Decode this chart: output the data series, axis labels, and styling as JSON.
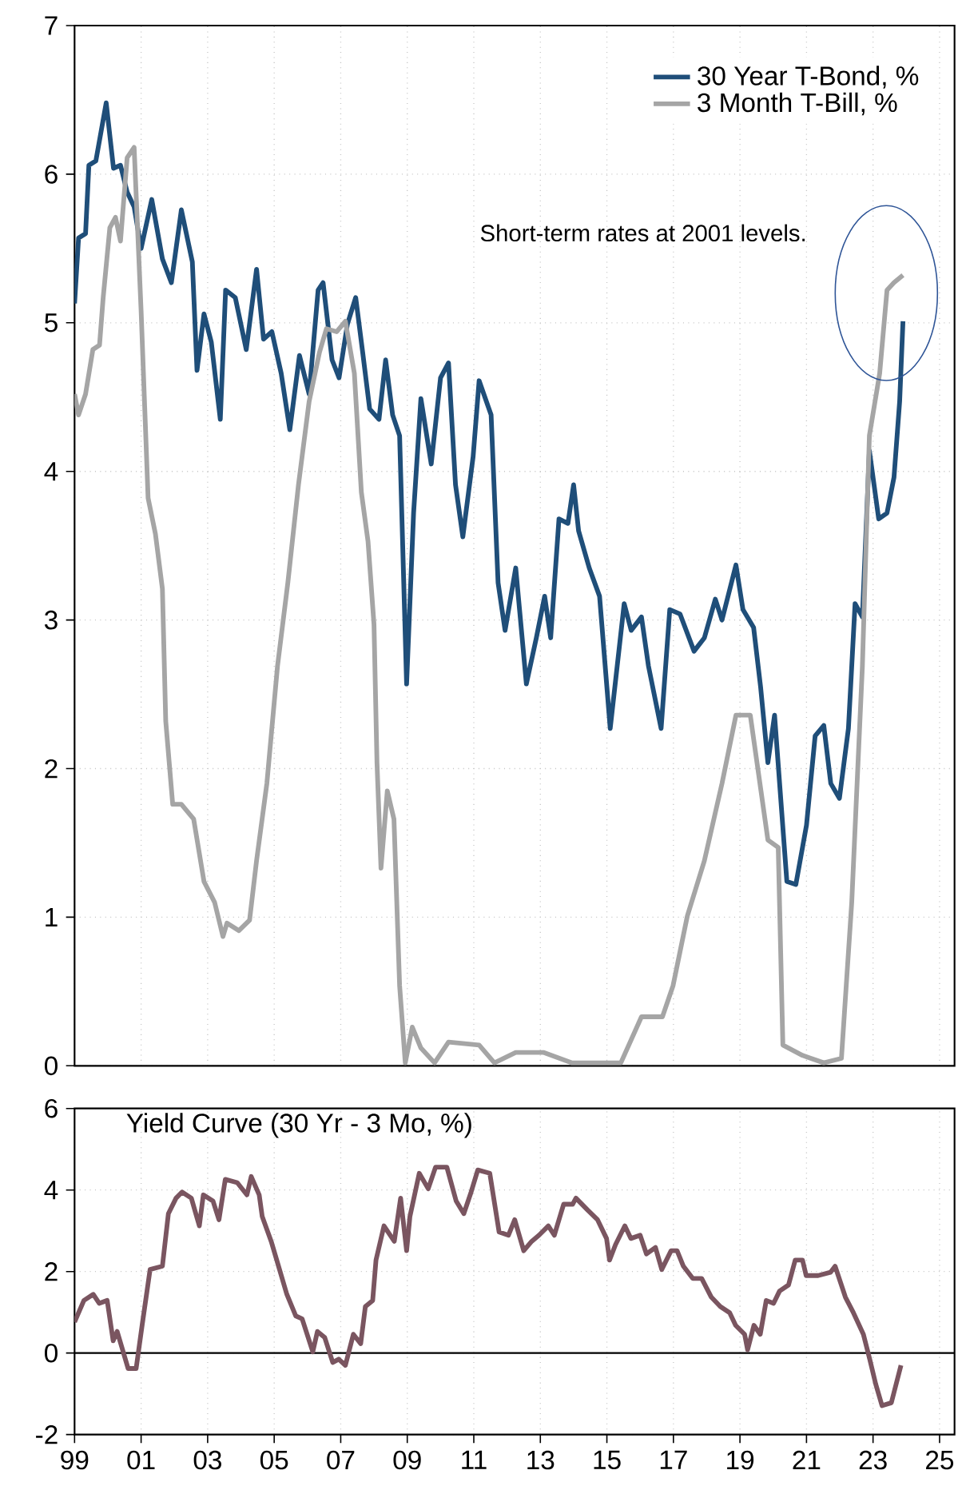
{
  "chart_data": [
    {
      "type": "line",
      "xlim": [
        1999,
        2025.45
      ],
      "ylim": [
        0,
        7
      ],
      "yticks": [
        0,
        1,
        2,
        3,
        4,
        5,
        6,
        7
      ],
      "xticks": [
        {
          "value": 1999,
          "label": null
        },
        {
          "value": 2001,
          "label": null
        },
        {
          "value": 2003,
          "label": null
        },
        {
          "value": 2005,
          "label": null
        },
        {
          "value": 2007,
          "label": null
        },
        {
          "value": 2009,
          "label": null
        },
        {
          "value": 2011,
          "label": null
        },
        {
          "value": 2013,
          "label": null
        },
        {
          "value": 2015,
          "label": null
        },
        {
          "value": 2017,
          "label": null
        },
        {
          "value": 2019,
          "label": null
        },
        {
          "value": 2021,
          "label": null
        },
        {
          "value": 2023,
          "label": null
        },
        {
          "value": 2025,
          "label": null
        }
      ],
      "tick_labels": "y",
      "grid": true,
      "legend": "top right",
      "annotations": [
        "Short-term rates at 2001 levels."
      ],
      "series": [
        {
          "name": "30 Year T-Bond, %",
          "color": "#1f4e79",
          "x": [
            1999.0,
            1999.12,
            1999.33,
            1999.43,
            1999.64,
            1999.95,
            2000.17,
            2000.38,
            2000.58,
            2000.79,
            2001.0,
            2001.32,
            2001.64,
            2001.91,
            2002.21,
            2002.54,
            2002.68,
            2002.89,
            2003.11,
            2003.38,
            2003.54,
            2003.83,
            2004.16,
            2004.47,
            2004.68,
            2004.93,
            2005.21,
            2005.47,
            2005.76,
            2006.05,
            2006.32,
            2006.47,
            2006.74,
            2006.95,
            2007.2,
            2007.45,
            2007.66,
            2007.87,
            2008.15,
            2008.35,
            2008.56,
            2008.77,
            2008.98,
            2009.19,
            2009.41,
            2009.72,
            2010.0,
            2010.24,
            2010.45,
            2010.67,
            2010.98,
            2011.16,
            2011.52,
            2011.73,
            2011.94,
            2012.26,
            2012.58,
            2012.88,
            2013.13,
            2013.31,
            2013.56,
            2013.83,
            2014.0,
            2014.15,
            2014.47,
            2014.78,
            2015.1,
            2015.52,
            2015.73,
            2016.04,
            2016.25,
            2016.63,
            2016.89,
            2017.2,
            2017.62,
            2017.93,
            2018.26,
            2018.46,
            2018.88,
            2019.09,
            2019.41,
            2019.62,
            2019.84,
            2020.04,
            2020.41,
            2020.68,
            2021.0,
            2021.26,
            2021.52,
            2021.73,
            2021.99,
            2022.26,
            2022.46,
            2022.68,
            2022.89,
            2023.17,
            2023.42,
            2023.63,
            2023.8,
            2023.9
          ],
          "values": [
            5.13,
            5.57,
            5.6,
            6.06,
            6.09,
            6.48,
            6.04,
            6.06,
            5.88,
            5.78,
            5.5,
            5.83,
            5.43,
            5.27,
            5.76,
            5.41,
            4.68,
            5.06,
            4.87,
            4.35,
            5.22,
            5.17,
            4.82,
            5.36,
            4.89,
            4.94,
            4.66,
            4.28,
            4.78,
            4.52,
            5.22,
            5.27,
            4.75,
            4.63,
            4.99,
            5.17,
            4.8,
            4.42,
            4.35,
            4.75,
            4.38,
            4.24,
            2.57,
            3.72,
            4.49,
            4.05,
            4.63,
            4.73,
            3.91,
            3.56,
            4.1,
            4.61,
            4.38,
            3.25,
            2.93,
            3.35,
            2.57,
            2.88,
            3.16,
            2.88,
            3.68,
            3.65,
            3.91,
            3.6,
            3.35,
            3.16,
            2.27,
            3.11,
            2.93,
            3.02,
            2.69,
            2.27,
            3.07,
            3.04,
            2.79,
            2.88,
            3.14,
            3.0,
            3.37,
            3.07,
            2.95,
            2.55,
            2.04,
            2.36,
            1.24,
            1.22,
            1.62,
            2.22,
            2.29,
            1.9,
            1.8,
            2.27,
            3.11,
            3.02,
            4.14,
            3.68,
            3.72,
            3.96,
            4.47,
            5.01
          ]
        },
        {
          "name": "3 Month T-Bill, %",
          "color": "#a5a5a5",
          "x": [
            1999.0,
            1999.12,
            1999.33,
            1999.55,
            1999.75,
            1999.86,
            2000.06,
            2000.23,
            2000.38,
            2000.58,
            2000.79,
            2001.0,
            2001.21,
            2001.43,
            2001.64,
            2001.74,
            2001.95,
            2002.21,
            2002.58,
            2002.89,
            2003.21,
            2003.46,
            2003.58,
            2003.94,
            2004.26,
            2004.47,
            2004.78,
            2005.1,
            2005.41,
            2005.73,
            2006.05,
            2006.36,
            2006.57,
            2006.88,
            2007.14,
            2007.41,
            2007.62,
            2007.82,
            2008.0,
            2008.09,
            2008.21,
            2008.4,
            2008.6,
            2008.77,
            2008.94,
            2009.15,
            2009.41,
            2009.82,
            2010.24,
            2011.16,
            2011.62,
            2012.26,
            2013.09,
            2013.94,
            2015.42,
            2016.04,
            2016.67,
            2016.99,
            2017.42,
            2017.93,
            2018.46,
            2018.88,
            2019.31,
            2019.84,
            2020.15,
            2020.29,
            2020.88,
            2021.52,
            2022.05,
            2022.36,
            2022.68,
            2022.89,
            2023.2,
            2023.42,
            2023.63,
            2023.9
          ],
          "values": [
            4.52,
            4.38,
            4.52,
            4.82,
            4.85,
            5.17,
            5.64,
            5.71,
            5.55,
            6.11,
            6.18,
            5.08,
            3.82,
            3.58,
            3.21,
            2.32,
            1.76,
            1.76,
            1.66,
            1.24,
            1.1,
            0.87,
            0.96,
            0.91,
            0.98,
            1.38,
            1.9,
            2.69,
            3.25,
            3.91,
            4.47,
            4.8,
            4.96,
            4.94,
            5.01,
            4.66,
            3.86,
            3.53,
            2.97,
            2.04,
            1.33,
            1.85,
            1.66,
            0.54,
            0.02,
            0.26,
            0.12,
            0.02,
            0.16,
            0.14,
            0.02,
            0.09,
            0.09,
            0.02,
            0.02,
            0.33,
            0.33,
            0.54,
            1.01,
            1.38,
            1.9,
            2.36,
            2.36,
            1.52,
            1.47,
            0.14,
            0.07,
            0.02,
            0.05,
            1.1,
            2.69,
            4.24,
            4.66,
            5.22,
            5.27,
            5.32
          ]
        }
      ]
    },
    {
      "type": "line",
      "title": "Yield Curve (30 Yr - 3 Mo, %)",
      "xlim": [
        1999,
        2025.45
      ],
      "ylim": [
        -2,
        6
      ],
      "yticks": [
        -2,
        0,
        2,
        4,
        6
      ],
      "xticks": [
        {
          "value": 1999,
          "label": "99"
        },
        {
          "value": 2001,
          "label": "01"
        },
        {
          "value": 2003,
          "label": "03"
        },
        {
          "value": 2005,
          "label": "05"
        },
        {
          "value": 2007,
          "label": "07"
        },
        {
          "value": 2009,
          "label": "09"
        },
        {
          "value": 2011,
          "label": "11"
        },
        {
          "value": 2013,
          "label": "13"
        },
        {
          "value": 2015,
          "label": "15"
        },
        {
          "value": 2017,
          "label": "17"
        },
        {
          "value": 2019,
          "label": "19"
        },
        {
          "value": 2021,
          "label": "21"
        },
        {
          "value": 2023,
          "label": "23"
        },
        {
          "value": 2025,
          "label": "25"
        }
      ],
      "grid": true,
      "ref_lines": [
        {
          "axis": "y",
          "value": 0,
          "color": "#000000"
        }
      ],
      "series": [
        {
          "color": "#7a5560",
          "x": [
            1999.0,
            1999.28,
            1999.56,
            1999.74,
            1999.98,
            2000.16,
            2000.28,
            2000.61,
            2000.85,
            2001.03,
            2001.27,
            2001.64,
            2001.82,
            2002.05,
            2002.23,
            2002.51,
            2002.75,
            2002.87,
            2003.16,
            2003.34,
            2003.53,
            2003.89,
            2004.18,
            2004.31,
            2004.55,
            2004.64,
            2004.91,
            2005.16,
            2005.38,
            2005.65,
            2005.84,
            2006.16,
            2006.3,
            2006.52,
            2006.76,
            2006.94,
            2007.14,
            2007.38,
            2007.6,
            2007.74,
            2007.96,
            2008.06,
            2008.3,
            2008.61,
            2008.8,
            2008.98,
            2009.08,
            2009.36,
            2009.63,
            2009.85,
            2010.19,
            2010.47,
            2010.7,
            2010.92,
            2011.12,
            2011.48,
            2011.76,
            2012.04,
            2012.23,
            2012.5,
            2012.74,
            2012.96,
            2013.24,
            2013.42,
            2013.7,
            2013.97,
            2014.07,
            2014.43,
            2014.72,
            2014.99,
            2015.08,
            2015.26,
            2015.54,
            2015.72,
            2016.0,
            2016.19,
            2016.46,
            2016.65,
            2016.93,
            2017.11,
            2017.3,
            2017.58,
            2017.85,
            2018.14,
            2018.41,
            2018.69,
            2018.87,
            2019.14,
            2019.23,
            2019.42,
            2019.61,
            2019.79,
            2020.01,
            2020.19,
            2020.46,
            2020.66,
            2020.88,
            2020.99,
            2021.35,
            2021.72,
            2021.86,
            2022.17,
            2022.41,
            2022.71,
            2022.9,
            2023.08,
            2023.27,
            2023.55,
            2023.84
          ],
          "values": [
            0.76,
            1.29,
            1.44,
            1.22,
            1.29,
            0.3,
            0.53,
            -0.38,
            -0.38,
            0.68,
            2.05,
            2.13,
            3.42,
            3.8,
            3.95,
            3.8,
            3.12,
            3.88,
            3.73,
            3.27,
            4.26,
            4.18,
            3.88,
            4.33,
            3.88,
            3.35,
            2.74,
            2.05,
            1.44,
            0.91,
            0.84,
            0.03,
            0.53,
            0.38,
            -0.23,
            -0.15,
            -0.3,
            0.46,
            0.23,
            1.14,
            1.29,
            2.28,
            3.12,
            2.74,
            3.8,
            2.51,
            3.35,
            4.41,
            4.03,
            4.56,
            4.56,
            3.73,
            3.42,
            3.95,
            4.49,
            4.41,
            2.97,
            2.89,
            3.27,
            2.51,
            2.74,
            2.89,
            3.12,
            2.89,
            3.65,
            3.65,
            3.8,
            3.5,
            3.27,
            2.81,
            2.28,
            2.66,
            3.12,
            2.81,
            2.89,
            2.43,
            2.59,
            2.05,
            2.51,
            2.51,
            2.13,
            1.83,
            1.83,
            1.37,
            1.14,
            0.99,
            0.68,
            0.46,
            0.08,
            0.68,
            0.46,
            1.29,
            1.22,
            1.52,
            1.67,
            2.28,
            2.28,
            1.9,
            1.9,
            1.98,
            2.13,
            1.37,
            0.99,
            0.46,
            -0.15,
            -0.76,
            -1.29,
            -1.22,
            -0.3
          ]
        }
      ]
    }
  ]
}
